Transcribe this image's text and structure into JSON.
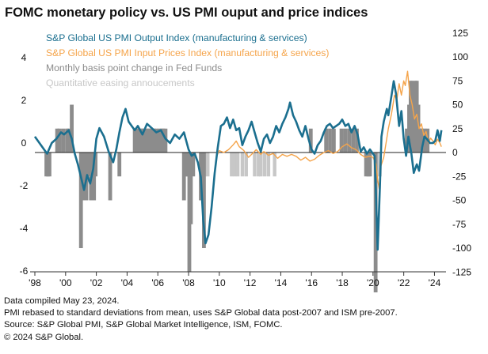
{
  "chart_data": {
    "type": "line",
    "title": "FOMC monetary policy vs. US PMI ouput and price indices",
    "x_axis": {
      "range": [
        1998.0,
        2024.75
      ],
      "ticks": [
        1998,
        2000,
        2002,
        2004,
        2006,
        2008,
        2010,
        2012,
        2014,
        2016,
        2018,
        2020,
        2022,
        2024
      ],
      "tick_labels": [
        "'98",
        "'00",
        "'02",
        "'04",
        "'06",
        "'08",
        "'10",
        "'12",
        "'14",
        "'16",
        "'18",
        "'20",
        "'22",
        "'24"
      ]
    },
    "y_axis_left": {
      "range": [
        -6,
        5.2
      ],
      "ticks": [
        4,
        2,
        0,
        -2,
        -4,
        -6
      ],
      "tick_labels": [
        "4",
        "2",
        "0",
        "-2",
        "-4",
        "-6"
      ]
    },
    "y_axis_right": {
      "range": [
        -125,
        125
      ],
      "ticks": [
        125,
        100,
        75,
        50,
        25,
        0,
        -25,
        -50,
        -75,
        -100,
        -125
      ],
      "tick_labels": [
        "125",
        "100",
        "75",
        "50",
        "25",
        "0",
        "-25",
        "-50",
        "-75",
        "-100",
        "-125"
      ]
    },
    "grid": false,
    "legend_position": "top-left",
    "legend": [
      {
        "label": "S&P Global US PMI Output Index (manufacturing & services)",
        "color": "#1b6f8f"
      },
      {
        "label": "S&P Global US PMI Input Prices Index (manufacturing & services)",
        "color": "#f5a44a"
      },
      {
        "label": "Monthly basis point change in Fed Funds",
        "color": "#8c8c8c"
      },
      {
        "label": "Quantitative easing annoucements",
        "color": "#c7c7c7"
      }
    ],
    "series": [
      {
        "name": "S&P Global US PMI Output Index (manufacturing & services)",
        "axis": "left",
        "color": "#1b6f8f",
        "points": [
          [
            1998.0,
            0.3
          ],
          [
            1998.3,
            0.0
          ],
          [
            1998.6,
            -0.3
          ],
          [
            1998.8,
            -0.5
          ],
          [
            1999.1,
            0.0
          ],
          [
            1999.4,
            0.2
          ],
          [
            1999.7,
            0.5
          ],
          [
            1999.9,
            0.4
          ],
          [
            2000.2,
            0.6
          ],
          [
            2000.4,
            0.2
          ],
          [
            2000.6,
            -0.5
          ],
          [
            2000.8,
            -1.0
          ],
          [
            2001.0,
            -1.6
          ],
          [
            2001.2,
            -2.2
          ],
          [
            2001.4,
            -1.5
          ],
          [
            2001.6,
            -1.9
          ],
          [
            2001.8,
            -1.2
          ],
          [
            2002.0,
            0.2
          ],
          [
            2002.2,
            0.7
          ],
          [
            2002.5,
            0.3
          ],
          [
            2002.8,
            -0.4
          ],
          [
            2003.1,
            -0.9
          ],
          [
            2003.3,
            -0.3
          ],
          [
            2003.5,
            0.5
          ],
          [
            2003.7,
            1.2
          ],
          [
            2003.9,
            1.6
          ],
          [
            2004.1,
            1.0
          ],
          [
            2004.3,
            0.8
          ],
          [
            2004.5,
            0.6
          ],
          [
            2004.7,
            0.8
          ],
          [
            2005.0,
            0.4
          ],
          [
            2005.3,
            0.9
          ],
          [
            2005.6,
            0.7
          ],
          [
            2005.9,
            0.5
          ],
          [
            2006.2,
            0.6
          ],
          [
            2006.5,
            0.2
          ],
          [
            2006.8,
            0.0
          ],
          [
            2007.1,
            0.4
          ],
          [
            2007.4,
            0.2
          ],
          [
            2007.7,
            0.5
          ],
          [
            2008.0,
            -0.3
          ],
          [
            2008.2,
            -0.6
          ],
          [
            2008.4,
            -0.5
          ],
          [
            2008.6,
            -0.9
          ],
          [
            2008.8,
            -1.6
          ],
          [
            2008.95,
            -3.6
          ],
          [
            2009.1,
            -4.7
          ],
          [
            2009.3,
            -4.3
          ],
          [
            2009.5,
            -3.0
          ],
          [
            2009.7,
            -1.4
          ],
          [
            2009.9,
            -0.2
          ],
          [
            2010.1,
            0.8
          ],
          [
            2010.3,
            0.9
          ],
          [
            2010.5,
            1.2
          ],
          [
            2010.7,
            0.7
          ],
          [
            2010.9,
            1.1
          ],
          [
            2011.1,
            0.6
          ],
          [
            2011.3,
            0.7
          ],
          [
            2011.5,
            -0.1
          ],
          [
            2011.7,
            0.3
          ],
          [
            2011.9,
            0.6
          ],
          [
            2012.1,
            1.0
          ],
          [
            2012.3,
            0.5
          ],
          [
            2012.5,
            0.0
          ],
          [
            2012.7,
            -0.4
          ],
          [
            2012.9,
            0.2
          ],
          [
            2013.1,
            0.4
          ],
          [
            2013.3,
            0.0
          ],
          [
            2013.5,
            0.3
          ],
          [
            2013.7,
            0.8
          ],
          [
            2013.9,
            0.5
          ],
          [
            2014.1,
            0.9
          ],
          [
            2014.3,
            1.2
          ],
          [
            2014.5,
            1.6
          ],
          [
            2014.6,
            1.9
          ],
          [
            2014.8,
            1.3
          ],
          [
            2015.0,
            1.0
          ],
          [
            2015.2,
            0.6
          ],
          [
            2015.4,
            0.3
          ],
          [
            2015.6,
            0.8
          ],
          [
            2015.8,
            0.2
          ],
          [
            2016.0,
            -0.3
          ],
          [
            2016.2,
            -0.5
          ],
          [
            2016.4,
            -0.1
          ],
          [
            2016.6,
            0.1
          ],
          [
            2016.8,
            0.5
          ],
          [
            2017.0,
            0.8
          ],
          [
            2017.2,
            0.9
          ],
          [
            2017.4,
            0.7
          ],
          [
            2017.6,
            0.8
          ],
          [
            2017.8,
            0.9
          ],
          [
            2018.0,
            1.1
          ],
          [
            2018.2,
            0.8
          ],
          [
            2018.4,
            0.9
          ],
          [
            2018.6,
            0.5
          ],
          [
            2018.8,
            0.8
          ],
          [
            2019.0,
            0.4
          ],
          [
            2019.2,
            -0.4
          ],
          [
            2019.4,
            -0.2
          ],
          [
            2019.6,
            -0.5
          ],
          [
            2019.8,
            -0.3
          ],
          [
            2020.0,
            -0.5
          ],
          [
            2020.1,
            -0.6
          ],
          [
            2020.2,
            -2.5
          ],
          [
            2020.3,
            -5.0
          ],
          [
            2020.45,
            -2.0
          ],
          [
            2020.55,
            0.3
          ],
          [
            2020.7,
            1.0
          ],
          [
            2020.9,
            1.6
          ],
          [
            2021.0,
            1.3
          ],
          [
            2021.2,
            2.2
          ],
          [
            2021.35,
            2.9
          ],
          [
            2021.5,
            2.3
          ],
          [
            2021.7,
            0.8
          ],
          [
            2021.85,
            1.5
          ],
          [
            2022.0,
            0.2
          ],
          [
            2022.15,
            -0.6
          ],
          [
            2022.3,
            0.3
          ],
          [
            2022.5,
            -0.5
          ],
          [
            2022.65,
            -1.4
          ],
          [
            2022.85,
            -1.0
          ],
          [
            2023.0,
            -1.3
          ],
          [
            2023.2,
            -0.2
          ],
          [
            2023.35,
            0.3
          ],
          [
            2023.5,
            0.2
          ],
          [
            2023.7,
            0.0
          ],
          [
            2023.9,
            0.0
          ],
          [
            2024.05,
            0.1
          ],
          [
            2024.2,
            0.6
          ],
          [
            2024.35,
            0.1
          ],
          [
            2024.45,
            0.6
          ]
        ]
      },
      {
        "name": "S&P Global US PMI Input Prices Index (manufacturing & services)",
        "axis": "right",
        "color": "#f5a44a",
        "points": [
          [
            2009.8,
            -5
          ],
          [
            2010.0,
            2
          ],
          [
            2010.3,
            0
          ],
          [
            2010.6,
            3
          ],
          [
            2010.9,
            8
          ],
          [
            2011.1,
            12
          ],
          [
            2011.3,
            6
          ],
          [
            2011.6,
            2
          ],
          [
            2011.9,
            -5
          ],
          [
            2012.1,
            -2
          ],
          [
            2012.4,
            3
          ],
          [
            2012.7,
            -2
          ],
          [
            2012.9,
            1
          ],
          [
            2013.2,
            -3
          ],
          [
            2013.5,
            -1
          ],
          [
            2013.8,
            -6
          ],
          [
            2014.1,
            -2
          ],
          [
            2014.4,
            -4
          ],
          [
            2014.7,
            -2
          ],
          [
            2015.0,
            -4
          ],
          [
            2015.3,
            -8
          ],
          [
            2015.6,
            -5
          ],
          [
            2015.9,
            -9
          ],
          [
            2016.2,
            -7
          ],
          [
            2016.5,
            -3
          ],
          [
            2016.8,
            0
          ],
          [
            2017.1,
            2
          ],
          [
            2017.4,
            -1
          ],
          [
            2017.7,
            1
          ],
          [
            2018.0,
            6
          ],
          [
            2018.3,
            9
          ],
          [
            2018.6,
            5
          ],
          [
            2018.9,
            3
          ],
          [
            2019.2,
            -2
          ],
          [
            2019.5,
            -5
          ],
          [
            2019.8,
            -4
          ],
          [
            2020.0,
            -5
          ],
          [
            2020.2,
            -12
          ],
          [
            2020.3,
            -28
          ],
          [
            2020.4,
            -38
          ],
          [
            2020.5,
            -15
          ],
          [
            2020.7,
            -5
          ],
          [
            2020.9,
            15
          ],
          [
            2021.0,
            25
          ],
          [
            2021.2,
            40
          ],
          [
            2021.4,
            60
          ],
          [
            2021.55,
            55
          ],
          [
            2021.7,
            72
          ],
          [
            2021.85,
            60
          ],
          [
            2022.0,
            75
          ],
          [
            2022.1,
            70
          ],
          [
            2022.25,
            85
          ],
          [
            2022.4,
            60
          ],
          [
            2022.55,
            50
          ],
          [
            2022.7,
            35
          ],
          [
            2022.85,
            40
          ],
          [
            2023.0,
            25
          ],
          [
            2023.15,
            30
          ],
          [
            2023.3,
            18
          ],
          [
            2023.45,
            22
          ],
          [
            2023.6,
            10
          ],
          [
            2023.75,
            15
          ],
          [
            2023.9,
            12
          ],
          [
            2024.05,
            8
          ],
          [
            2024.2,
            14
          ],
          [
            2024.35,
            10
          ],
          [
            2024.45,
            6
          ]
        ]
      }
    ],
    "bars": {
      "name": "Monthly basis point change in Fed Funds",
      "axis": "right",
      "color": "#8c8c8c",
      "items": [
        [
          1998.75,
          -25
        ],
        [
          1998.85,
          -25
        ],
        [
          1998.95,
          -25
        ],
        [
          1999.45,
          25
        ],
        [
          1999.6,
          25
        ],
        [
          1999.85,
          25
        ],
        [
          2000.1,
          25
        ],
        [
          2000.2,
          25
        ],
        [
          2000.4,
          50
        ],
        [
          2001.0,
          -100
        ],
        [
          2001.1,
          -50
        ],
        [
          2001.25,
          -50
        ],
        [
          2001.35,
          -50
        ],
        [
          2001.5,
          -25
        ],
        [
          2001.65,
          -50
        ],
        [
          2001.75,
          -50
        ],
        [
          2001.85,
          -50
        ],
        [
          2001.95,
          -25
        ],
        [
          2002.9,
          -50
        ],
        [
          2003.5,
          -25
        ],
        [
          2004.5,
          25
        ],
        [
          2004.65,
          25
        ],
        [
          2004.75,
          25
        ],
        [
          2004.85,
          25
        ],
        [
          2004.95,
          25
        ],
        [
          2005.1,
          25
        ],
        [
          2005.25,
          25
        ],
        [
          2005.4,
          25
        ],
        [
          2005.5,
          25
        ],
        [
          2005.65,
          25
        ],
        [
          2005.75,
          25
        ],
        [
          2005.9,
          25
        ],
        [
          2006.1,
          25
        ],
        [
          2006.25,
          25
        ],
        [
          2006.35,
          25
        ],
        [
          2006.5,
          25
        ],
        [
          2007.7,
          -50
        ],
        [
          2007.85,
          -25
        ],
        [
          2007.95,
          -25
        ],
        [
          2008.05,
          -125
        ],
        [
          2008.15,
          -75
        ],
        [
          2008.3,
          -25
        ],
        [
          2008.8,
          -50
        ],
        [
          2008.9,
          -50
        ],
        [
          2009.0,
          -100
        ],
        [
          2015.95,
          25
        ],
        [
          2016.95,
          25
        ],
        [
          2017.2,
          25
        ],
        [
          2017.45,
          25
        ],
        [
          2017.95,
          25
        ],
        [
          2018.2,
          25
        ],
        [
          2018.45,
          25
        ],
        [
          2018.7,
          25
        ],
        [
          2018.95,
          25
        ],
        [
          2019.55,
          -25
        ],
        [
          2019.7,
          -25
        ],
        [
          2019.8,
          -25
        ],
        [
          2020.17,
          -150
        ],
        [
          2022.2,
          25
        ],
        [
          2022.35,
          50
        ],
        [
          2022.45,
          75
        ],
        [
          2022.55,
          75
        ],
        [
          2022.75,
          75
        ],
        [
          2022.85,
          75
        ],
        [
          2022.95,
          50
        ],
        [
          2023.1,
          25
        ],
        [
          2023.2,
          25
        ],
        [
          2023.35,
          25
        ],
        [
          2023.55,
          25
        ]
      ]
    },
    "qe_announcements": {
      "name": "Quantitative easing annoucements",
      "axis": "right",
      "color": "#c7c7c7",
      "items": [
        [
          2009.05,
          -25
        ],
        [
          2009.25,
          -25
        ],
        [
          2010.8,
          -25
        ],
        [
          2011.0,
          -25
        ],
        [
          2011.2,
          -25
        ],
        [
          2011.5,
          -25
        ],
        [
          2011.75,
          -25
        ],
        [
          2012.3,
          -25
        ],
        [
          2012.55,
          -25
        ],
        [
          2012.7,
          -25
        ],
        [
          2012.95,
          -25
        ],
        [
          2013.2,
          -25
        ],
        [
          2013.6,
          -25
        ],
        [
          2019.8,
          -20
        ],
        [
          2020.2,
          -25
        ],
        [
          2020.3,
          -25
        ],
        [
          2020.45,
          -25
        ]
      ]
    }
  },
  "footnotes": [
    "Data compiled May 23, 2024.",
    "PMI rebased to standard deviations from mean, uses S&P Global data post-2007 and ISM pre-2007.",
    "Source: S&P Global PMI, S&P Global Market Intelligence, ISM, FOMC.",
    "© 2024 S&P Global."
  ]
}
